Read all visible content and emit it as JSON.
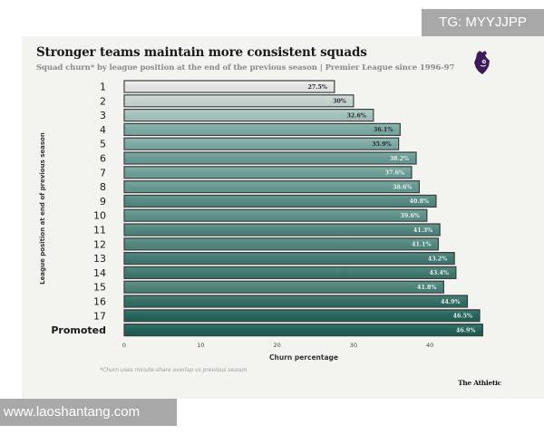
{
  "watermarks": {
    "top": "TG: MYYJJPP",
    "bottom": "www.laoshantang.com"
  },
  "header": {
    "title": "Stronger teams maintain more consistent squads",
    "subtitle": "Squad churn* by league position at the end of the previous season | Premier League since 1996-97",
    "logo_icon": "premier-league-lion-icon"
  },
  "footer": {
    "footnote": "*Churn uses minute-share overlap vs previous season",
    "brand": "The Athletic"
  },
  "colors": {
    "background": "#f3f3ef",
    "bar_light": "#e8ecea",
    "bar_dark": "#1d5f55",
    "bar_border": "#3a3f3e",
    "logo": "#3d195b"
  },
  "chart_data": {
    "type": "bar",
    "orientation": "horizontal",
    "title": "Stronger teams maintain more consistent squads",
    "subtitle": "Squad churn* by league position at the end of the previous season | Premier League since 1996-97",
    "xlabel": "Churn percentage",
    "ylabel": "League position at end of previous season",
    "xlim": [
      0,
      47
    ],
    "xticks": [
      0,
      10,
      20,
      30,
      40
    ],
    "grid": false,
    "categories": [
      "1",
      "2",
      "3",
      "4",
      "5",
      "6",
      "7",
      "8",
      "9",
      "10",
      "11",
      "12",
      "13",
      "14",
      "15",
      "16",
      "17",
      "Promoted"
    ],
    "values": [
      27.5,
      30,
      32.6,
      36.1,
      35.9,
      38.2,
      37.6,
      38.6,
      40.8,
      39.6,
      41.3,
      41.1,
      43.2,
      43.4,
      41.8,
      44.9,
      46.5,
      46.9
    ],
    "labels": [
      "27.5%",
      "30%",
      "32.6%",
      "36.1%",
      "35.9%",
      "38.2%",
      "37.6%",
      "38.6%",
      "40.8%",
      "39.6%",
      "41.3%",
      "41.1%",
      "43.2%",
      "43.4%",
      "41.8%",
      "44.9%",
      "46.5%",
      "46.9%"
    ],
    "color_scale": "sequential light-grey to dark teal by value",
    "footnote": "*Churn uses minute-share overlap vs previous season"
  }
}
